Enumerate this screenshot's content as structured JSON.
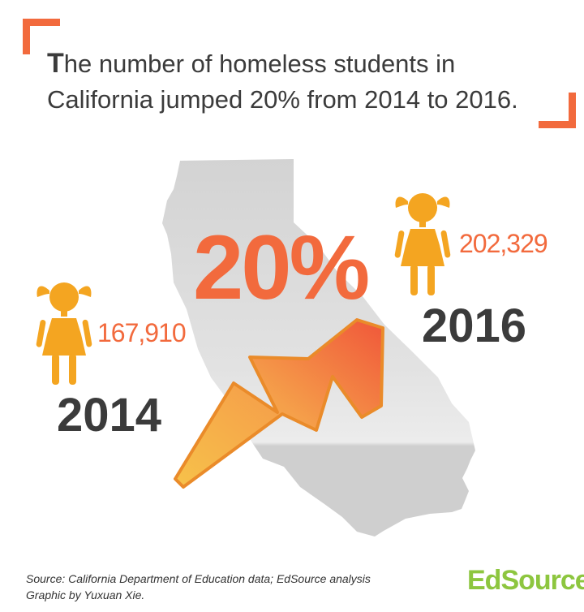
{
  "headline": {
    "first_letter": "T",
    "rest": "he number of homeless students in California jumped 20% from 2014 to 2016."
  },
  "big_percent": "20%",
  "year_2014": {
    "count": "167,910",
    "year": "2014"
  },
  "year_2016": {
    "count": "202,329",
    "year": "2016"
  },
  "source": {
    "line1": "Source: California Department of Education data; EdSource analysis",
    "line2": "Graphic by Yuxuan Xie."
  },
  "logo": "EdSource",
  "colors": {
    "accent": "#f26a3d",
    "girl": "#f4a521",
    "dark_text": "#3b3b3b",
    "map": "#d3d3d3",
    "logo_green": "#8dc63f"
  }
}
